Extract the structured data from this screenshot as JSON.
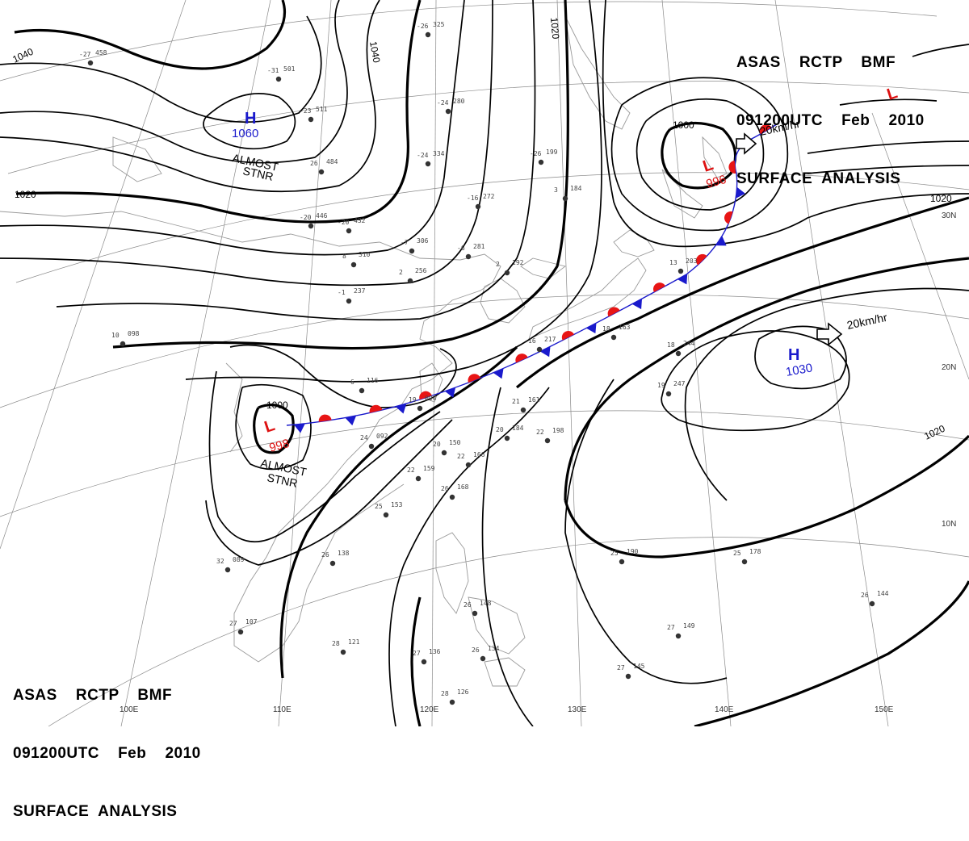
{
  "title": {
    "lines": [
      "ASAS    RCTP    BMF",
      "091200UTC    Feb    2010",
      "SURFACE  ANALYSIS"
    ]
  },
  "isobar_labels": [
    "1040",
    "1040",
    "1020",
    "1020",
    "1020",
    "1000",
    "1000",
    "1020"
  ],
  "longitude_labels": [
    "100E",
    "110E",
    "120E",
    "130E",
    "140E",
    "150E"
  ],
  "latitude_labels": [
    "30N",
    "20N",
    "10N"
  ],
  "pressure_centers": [
    {
      "type": "H",
      "value": "1060",
      "note_lines": [
        "ALMOST",
        "STNR"
      ],
      "color": "#1a1acc"
    },
    {
      "type": "L",
      "value": "998",
      "note_lines": [
        "ALMOST",
        "STNR"
      ],
      "color": "#dd1111"
    },
    {
      "type": "L",
      "value": "996",
      "note_lines": [],
      "color": "#dd1111"
    },
    {
      "type": "H",
      "value": "1030",
      "note_lines": [],
      "color": "#1a1acc"
    },
    {
      "type": "L",
      "value": "",
      "note_lines": [],
      "color": "#dd1111"
    }
  ],
  "motion_vectors": [
    "20km/hr",
    "20km/hr"
  ],
  "stations": [
    {
      "t": "-27",
      "p": "458"
    },
    {
      "t": "-31",
      "p": "501"
    },
    {
      "t": "-23",
      "p": "511"
    },
    {
      "t": "-24",
      "p": "280"
    },
    {
      "t": "-24",
      "p": "334"
    },
    {
      "t": "-26",
      "p": "325"
    },
    {
      "t": "26",
      "p": "484"
    },
    {
      "t": "-20",
      "p": "446"
    },
    {
      "t": "-20",
      "p": "432"
    },
    {
      "t": "-16",
      "p": "272"
    },
    {
      "t": "-7",
      "p": "306"
    },
    {
      "t": "-6",
      "p": "281"
    },
    {
      "t": "-1",
      "p": "237"
    },
    {
      "t": "2",
      "p": "192"
    },
    {
      "t": "8",
      "p": "310"
    },
    {
      "t": "2",
      "p": "256"
    },
    {
      "t": "-26",
      "p": "199"
    },
    {
      "t": "3",
      "p": "184"
    },
    {
      "t": "13",
      "p": "203"
    },
    {
      "t": "16",
      "p": "217"
    },
    {
      "t": "18",
      "p": "163"
    },
    {
      "t": "18",
      "p": "244"
    },
    {
      "t": "19",
      "p": "247"
    },
    {
      "t": "6",
      "p": "116"
    },
    {
      "t": "19",
      "p": "094"
    },
    {
      "t": "24",
      "p": "092"
    },
    {
      "t": "20",
      "p": "150"
    },
    {
      "t": "22",
      "p": "159"
    },
    {
      "t": "20",
      "p": "184"
    },
    {
      "t": "22",
      "p": "198"
    },
    {
      "t": "21",
      "p": "161"
    },
    {
      "t": "22",
      "p": "166"
    },
    {
      "t": "25",
      "p": "153"
    },
    {
      "t": "26",
      "p": "168"
    },
    {
      "t": "26",
      "p": "138"
    },
    {
      "t": "32",
      "p": "089"
    },
    {
      "t": "27",
      "p": "107"
    },
    {
      "t": "28",
      "p": "121"
    },
    {
      "t": "27",
      "p": "136"
    },
    {
      "t": "28",
      "p": "126"
    },
    {
      "t": "25",
      "p": "190"
    },
    {
      "t": "25",
      "p": "178"
    },
    {
      "t": "27",
      "p": "149"
    },
    {
      "t": "27",
      "p": "145"
    },
    {
      "t": "26",
      "p": "144"
    },
    {
      "t": "26",
      "p": "134"
    },
    {
      "t": "26",
      "p": "148"
    },
    {
      "t": "10",
      "p": "098"
    }
  ]
}
